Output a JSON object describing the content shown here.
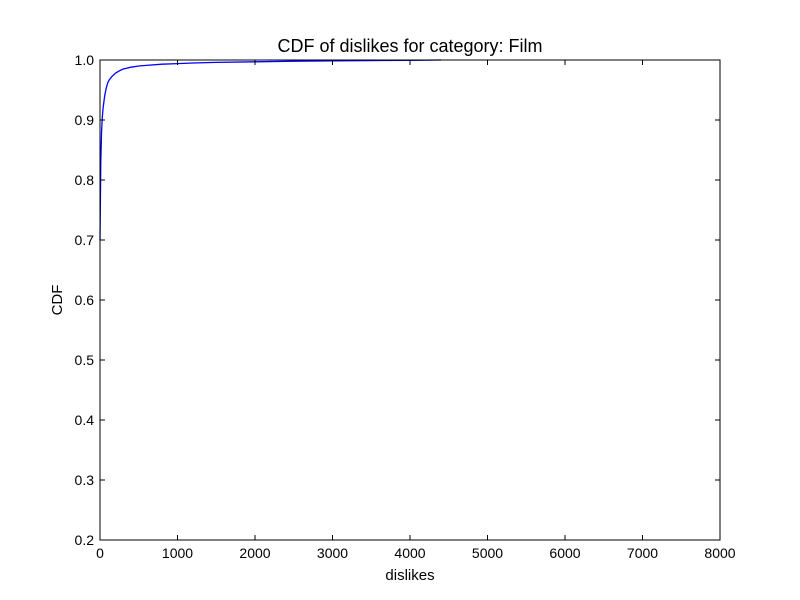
{
  "chart_data": {
    "type": "line",
    "title": "CDF of dislikes for category: Film",
    "xlabel": "dislikes",
    "ylabel": "CDF",
    "xlim": [
      0,
      8000
    ],
    "ylim": [
      0.2,
      1.0
    ],
    "xticks": [
      0,
      1000,
      2000,
      3000,
      4000,
      5000,
      6000,
      7000,
      8000
    ],
    "yticks": [
      0.2,
      0.3,
      0.4,
      0.5,
      0.6,
      0.7,
      0.8,
      0.9,
      1.0
    ],
    "xtick_labels": [
      "0",
      "1000",
      "2000",
      "3000",
      "4000",
      "5000",
      "6000",
      "7000",
      "8000"
    ],
    "ytick_labels": [
      "0.2",
      "0.3",
      "0.4",
      "0.5",
      "0.6",
      "0.7",
      "0.8",
      "0.9",
      "1.0"
    ],
    "grid": false,
    "series": [
      {
        "color": "#0000ff",
        "x": [
          0,
          10,
          20,
          30,
          40,
          50,
          60,
          80,
          100,
          120,
          150,
          200,
          250,
          300,
          400,
          500,
          600,
          800,
          1000,
          1200,
          1500,
          2000,
          2500,
          3000,
          3500,
          4000,
          4400
        ],
        "y": [
          0.7,
          0.83,
          0.88,
          0.905,
          0.92,
          0.93,
          0.94,
          0.953,
          0.962,
          0.967,
          0.972,
          0.978,
          0.982,
          0.985,
          0.988,
          0.99,
          0.991,
          0.993,
          0.994,
          0.995,
          0.996,
          0.997,
          0.998,
          0.9985,
          0.999,
          0.9995,
          1.0
        ]
      }
    ]
  }
}
